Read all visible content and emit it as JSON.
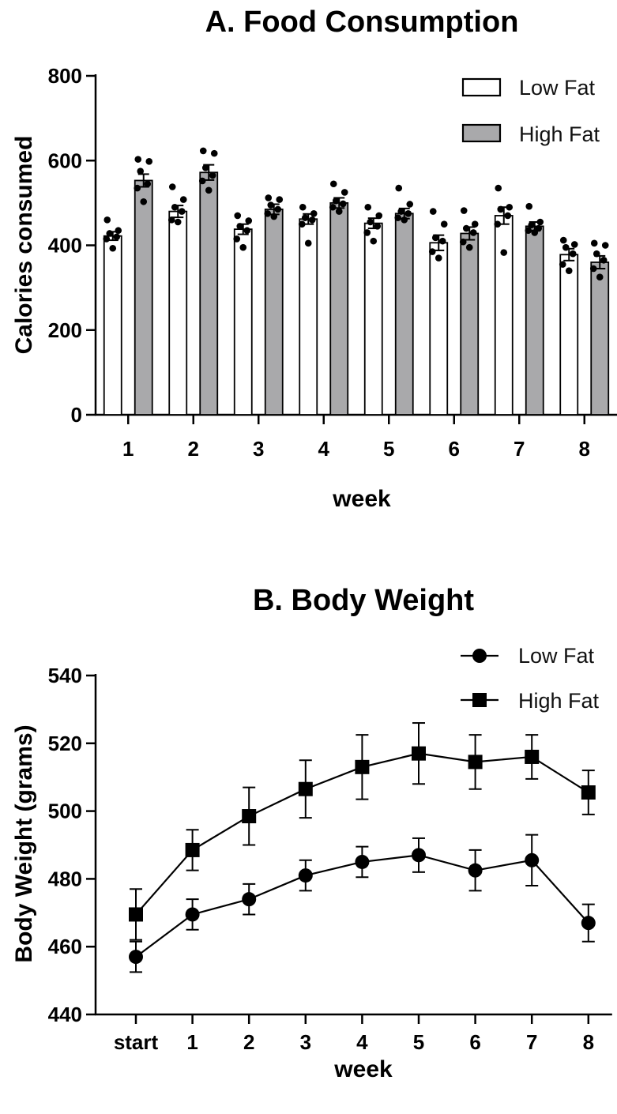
{
  "chart_data": [
    {
      "type": "bar",
      "title": "A. Food Consumption",
      "xlabel": "week",
      "ylabel": "Calories consumed",
      "ylim": [
        0,
        800
      ],
      "yticks": [
        0,
        200,
        400,
        600,
        800
      ],
      "categories": [
        "1",
        "2",
        "3",
        "4",
        "5",
        "6",
        "7",
        "8"
      ],
      "legend_position": "top-right",
      "series": [
        {
          "name": "Low Fat",
          "fill": "#ffffff",
          "values": [
            422,
            480,
            438,
            462,
            452,
            406,
            470,
            378
          ],
          "errors": [
            10,
            14,
            12,
            12,
            12,
            18,
            20,
            14
          ],
          "points": [
            [
              460,
              435,
              428,
              420,
              415,
              393
            ],
            [
              538,
              508,
              490,
              480,
              460,
              455
            ],
            [
              470,
              458,
              445,
              435,
              415,
              395
            ],
            [
              490,
              475,
              465,
              460,
              450,
              405
            ],
            [
              490,
              470,
              455,
              445,
              430,
              410
            ],
            [
              480,
              450,
              418,
              410,
              385,
              370
            ],
            [
              535,
              490,
              485,
              470,
              450,
              383
            ],
            [
              412,
              402,
              395,
              380,
              355,
              340
            ]
          ]
        },
        {
          "name": "High Fat",
          "fill": "#a9a9ab",
          "values": [
            553,
            572,
            485,
            500,
            475,
            428,
            445,
            360
          ],
          "errors": [
            15,
            18,
            12,
            12,
            12,
            15,
            10,
            15
          ],
          "points": [
            [
              603,
              598,
              575,
              545,
              535,
              503
            ],
            [
              623,
              617,
              583,
              565,
              552,
              530
            ],
            [
              512,
              508,
              495,
              485,
              475,
              468
            ],
            [
              545,
              525,
              505,
              498,
              490,
              480
            ],
            [
              535,
              497,
              480,
              475,
              465,
              460
            ],
            [
              482,
              450,
              440,
              430,
              408,
              395
            ],
            [
              492,
              455,
              448,
              440,
              435,
              430
            ],
            [
              405,
              400,
              380,
              365,
              345,
              325
            ]
          ]
        }
      ]
    },
    {
      "type": "line",
      "title": "B. Body Weight",
      "xlabel": "week",
      "ylabel": "Body Weight (grams)",
      "ylim": [
        440,
        540
      ],
      "yticks": [
        440,
        460,
        480,
        500,
        520,
        540
      ],
      "categories": [
        "start",
        "1",
        "2",
        "3",
        "4",
        "5",
        "6",
        "7",
        "8"
      ],
      "legend_position": "top-right",
      "series": [
        {
          "name": "Low Fat",
          "marker": "circle",
          "values": [
            457,
            469.5,
            474,
            481,
            485,
            487,
            482.5,
            485.5,
            467
          ],
          "errors": [
            4.5,
            4.5,
            4.5,
            4.5,
            4.5,
            5,
            6,
            7.5,
            5.5
          ]
        },
        {
          "name": "High Fat",
          "marker": "square",
          "values": [
            469.5,
            488.5,
            498.5,
            506.5,
            513,
            517,
            514.5,
            516,
            505.5
          ],
          "errors": [
            7.5,
            6,
            8.5,
            8.5,
            9.5,
            9,
            8,
            6.5,
            6.5
          ]
        }
      ]
    }
  ]
}
